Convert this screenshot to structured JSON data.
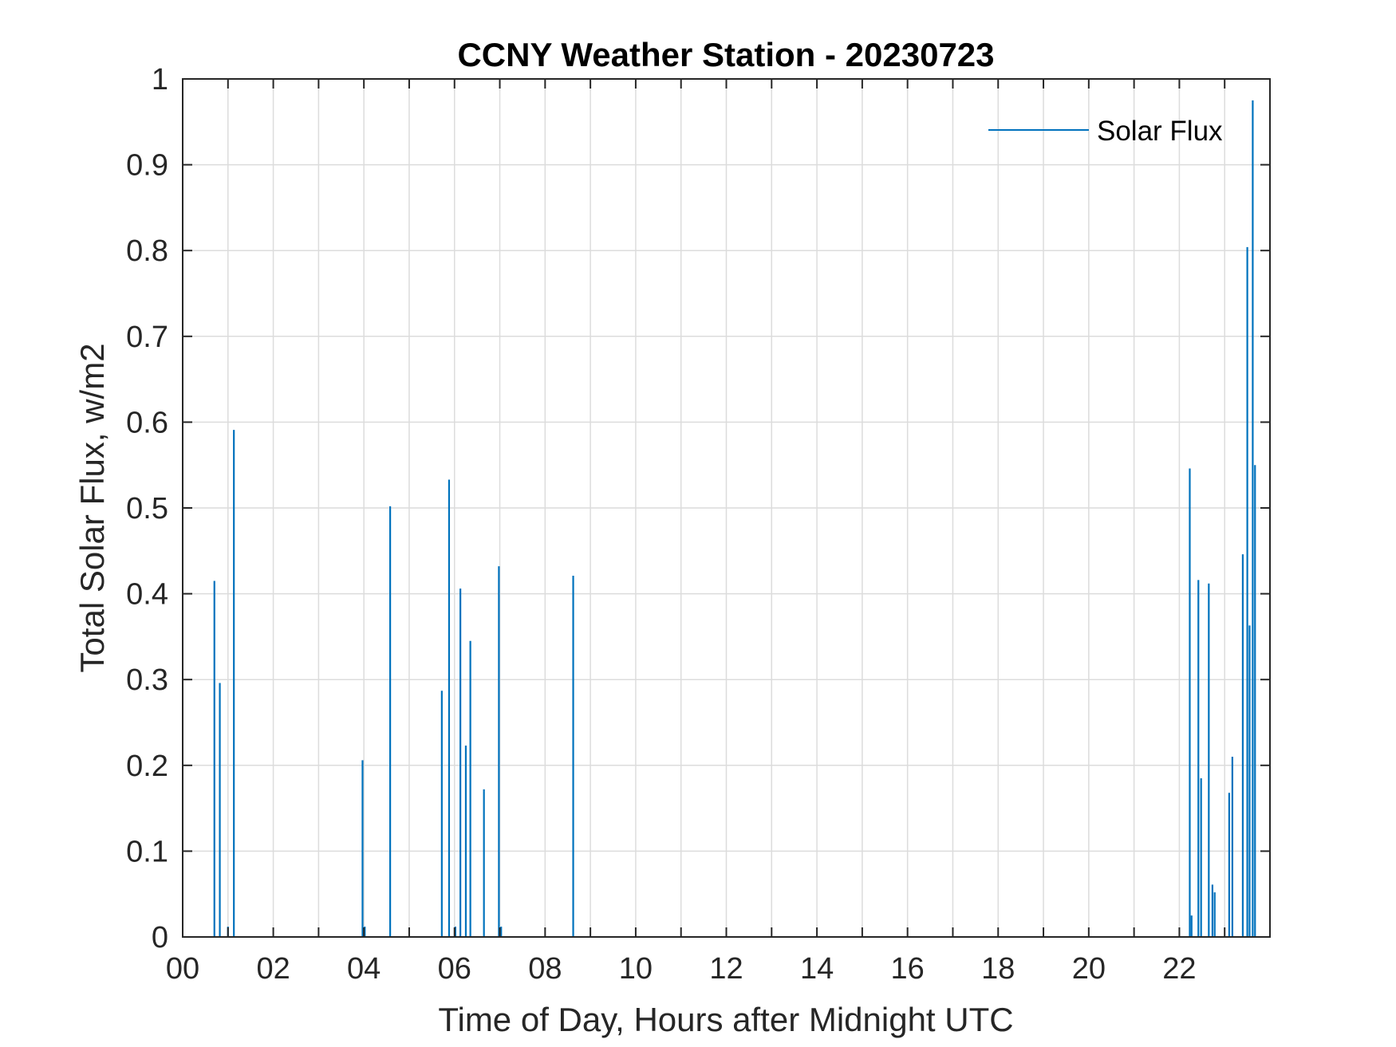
{
  "chart_data": {
    "type": "line",
    "title": "CCNY Weather Station - 20230723",
    "xlabel": "Time of Day, Hours after Midnight UTC",
    "ylabel": "Total Solar Flux, w/m2",
    "xlim": [
      0,
      24
    ],
    "ylim": [
      0,
      1
    ],
    "xticks": [
      0,
      2,
      4,
      6,
      8,
      10,
      12,
      14,
      16,
      18,
      20,
      22
    ],
    "xtick_labels": [
      "00",
      "02",
      "04",
      "06",
      "08",
      "10",
      "12",
      "14",
      "16",
      "18",
      "20",
      "22"
    ],
    "yticks": [
      0,
      0.1,
      0.2,
      0.3,
      0.4,
      0.5,
      0.6,
      0.7,
      0.8,
      0.9,
      1
    ],
    "ytick_labels": [
      "0",
      "0.1",
      "0.2",
      "0.3",
      "0.4",
      "0.5",
      "0.6",
      "0.7",
      "0.8",
      "0.9",
      "1"
    ],
    "grid": true,
    "legend_position": "top-right",
    "series": [
      {
        "name": "Solar Flux",
        "color": "#0072bd",
        "spikes": [
          {
            "x": 0.7,
            "y": 0.415
          },
          {
            "x": 0.82,
            "y": 0.296
          },
          {
            "x": 1.0,
            "y": 0.012
          },
          {
            "x": 1.13,
            "y": 0.591
          },
          {
            "x": 3.97,
            "y": 0.206
          },
          {
            "x": 4.02,
            "y": 0.012
          },
          {
            "x": 4.58,
            "y": 0.502
          },
          {
            "x": 5.72,
            "y": 0.287
          },
          {
            "x": 5.88,
            "y": 0.533
          },
          {
            "x": 6.02,
            "y": 0.012
          },
          {
            "x": 6.13,
            "y": 0.406
          },
          {
            "x": 6.25,
            "y": 0.223
          },
          {
            "x": 6.35,
            "y": 0.345
          },
          {
            "x": 6.65,
            "y": 0.172
          },
          {
            "x": 6.98,
            "y": 0.432
          },
          {
            "x": 7.03,
            "y": 0.012
          },
          {
            "x": 8.62,
            "y": 0.421
          },
          {
            "x": 22.23,
            "y": 0.546
          },
          {
            "x": 22.27,
            "y": 0.025
          },
          {
            "x": 22.42,
            "y": 0.416
          },
          {
            "x": 22.48,
            "y": 0.185
          },
          {
            "x": 22.65,
            "y": 0.412
          },
          {
            "x": 22.73,
            "y": 0.061
          },
          {
            "x": 22.78,
            "y": 0.052
          },
          {
            "x": 23.1,
            "y": 0.168
          },
          {
            "x": 23.17,
            "y": 0.21
          },
          {
            "x": 23.4,
            "y": 0.446
          },
          {
            "x": 23.5,
            "y": 0.804
          },
          {
            "x": 23.55,
            "y": 0.363
          },
          {
            "x": 23.62,
            "y": 0.975
          },
          {
            "x": 23.67,
            "y": 0.55
          }
        ]
      }
    ]
  }
}
